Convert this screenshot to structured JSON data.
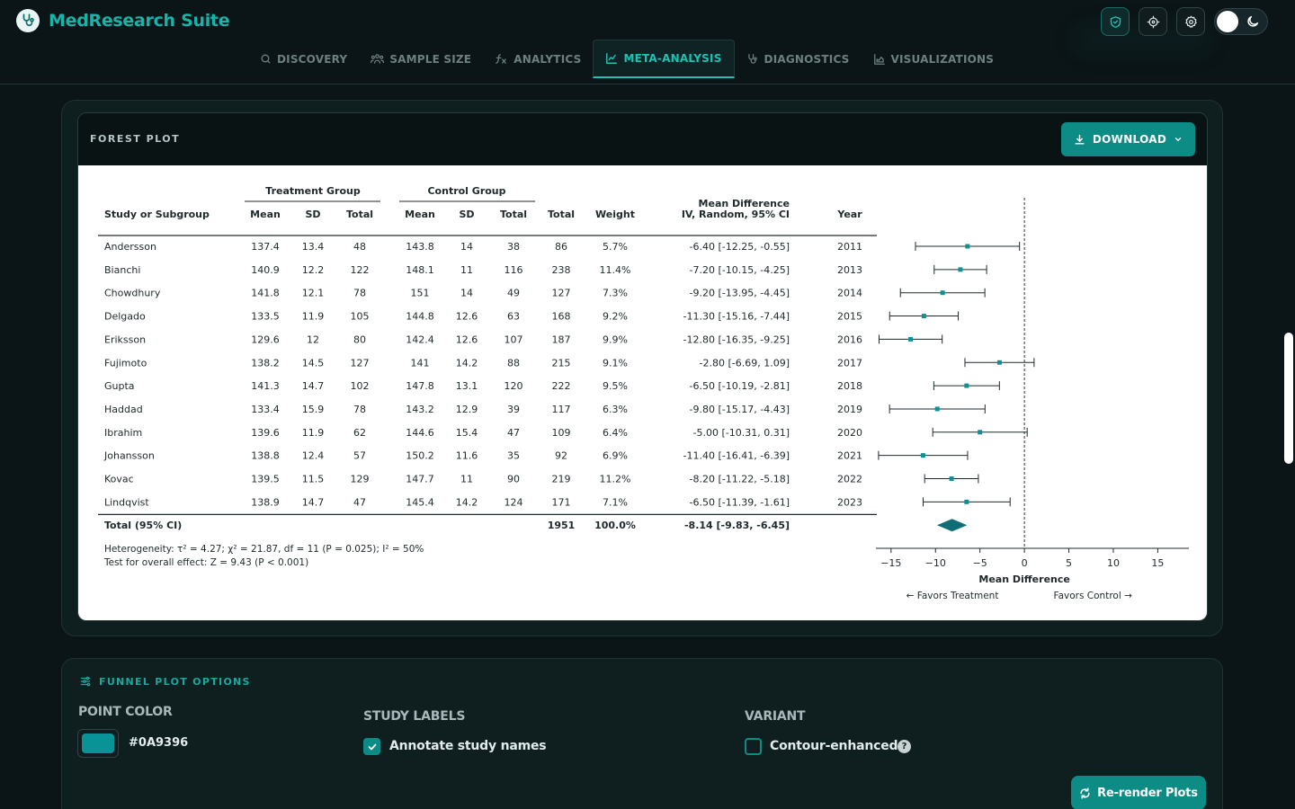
{
  "app": {
    "title": "MedResearch Suite"
  },
  "nav": {
    "tabs": [
      {
        "label": "DISCOVERY",
        "icon": "search-icon",
        "active": false
      },
      {
        "label": "SAMPLE SIZE",
        "icon": "users-icon",
        "active": false
      },
      {
        "label": "ANALYTICS",
        "icon": "function-icon",
        "active": false
      },
      {
        "label": "META-ANALYSIS",
        "icon": "chart-line-icon",
        "active": true
      },
      {
        "label": "DIAGNOSTICS",
        "icon": "stethoscope-icon",
        "active": false
      },
      {
        "label": "VISUALIZATIONS",
        "icon": "chart-area-icon",
        "active": false
      }
    ]
  },
  "header_actions": [
    "shield-icon",
    "crosshair-icon",
    "gear-icon",
    "theme-toggle"
  ],
  "forest": {
    "title": "FOREST PLOT",
    "download_label": "DOWNLOAD",
    "groups": {
      "treatment": "Treatment Group",
      "control": "Control Group"
    },
    "columns": {
      "study": "Study or Subgroup",
      "mean": "Mean",
      "sd": "SD",
      "total": "Total",
      "overall_total": "Total",
      "weight": "Weight",
      "md_line1": "Mean Difference",
      "md_line2": "IV, Random, 95% CI",
      "year": "Year"
    },
    "studies": [
      {
        "name": "Andersson",
        "t_mean": "137.4",
        "t_sd": "13.4",
        "t_total": "48",
        "c_mean": "143.8",
        "c_sd": "14",
        "c_total": "38",
        "total": "86",
        "weight": "5.7%",
        "ci_text": "-6.40 [-12.25, -0.55]",
        "year": "2011",
        "md": -6.4,
        "lo": -12.25,
        "hi": -0.55
      },
      {
        "name": "Bianchi",
        "t_mean": "140.9",
        "t_sd": "12.2",
        "t_total": "122",
        "c_mean": "148.1",
        "c_sd": "11",
        "c_total": "116",
        "total": "238",
        "weight": "11.4%",
        "ci_text": "-7.20 [-10.15, -4.25]",
        "year": "2013",
        "md": -7.2,
        "lo": -10.15,
        "hi": -4.25
      },
      {
        "name": "Chowdhury",
        "t_mean": "141.8",
        "t_sd": "12.1",
        "t_total": "78",
        "c_mean": "151",
        "c_sd": "14",
        "c_total": "49",
        "total": "127",
        "weight": "7.3%",
        "ci_text": "-9.20 [-13.95, -4.45]",
        "year": "2014",
        "md": -9.2,
        "lo": -13.95,
        "hi": -4.45
      },
      {
        "name": "Delgado",
        "t_mean": "133.5",
        "t_sd": "11.9",
        "t_total": "105",
        "c_mean": "144.8",
        "c_sd": "12.6",
        "c_total": "63",
        "total": "168",
        "weight": "9.2%",
        "ci_text": "-11.30 [-15.16, -7.44]",
        "year": "2015",
        "md": -11.3,
        "lo": -15.16,
        "hi": -7.44
      },
      {
        "name": "Eriksson",
        "t_mean": "129.6",
        "t_sd": "12",
        "t_total": "80",
        "c_mean": "142.4",
        "c_sd": "12.6",
        "c_total": "107",
        "total": "187",
        "weight": "9.9%",
        "ci_text": "-12.80 [-16.35, -9.25]",
        "year": "2016",
        "md": -12.8,
        "lo": -16.35,
        "hi": -9.25
      },
      {
        "name": "Fujimoto",
        "t_mean": "138.2",
        "t_sd": "14.5",
        "t_total": "127",
        "c_mean": "141",
        "c_sd": "14.2",
        "c_total": "88",
        "total": "215",
        "weight": "9.1%",
        "ci_text": "-2.80 [-6.69, 1.09]",
        "year": "2017",
        "md": -2.8,
        "lo": -6.69,
        "hi": 1.09
      },
      {
        "name": "Gupta",
        "t_mean": "141.3",
        "t_sd": "14.7",
        "t_total": "102",
        "c_mean": "147.8",
        "c_sd": "13.1",
        "c_total": "120",
        "total": "222",
        "weight": "9.5%",
        "ci_text": "-6.50 [-10.19, -2.81]",
        "year": "2018",
        "md": -6.5,
        "lo": -10.19,
        "hi": -2.81
      },
      {
        "name": "Haddad",
        "t_mean": "133.4",
        "t_sd": "15.9",
        "t_total": "78",
        "c_mean": "143.2",
        "c_sd": "12.9",
        "c_total": "39",
        "total": "117",
        "weight": "6.3%",
        "ci_text": "-9.80 [-15.17, -4.43]",
        "year": "2019",
        "md": -9.8,
        "lo": -15.17,
        "hi": -4.43
      },
      {
        "name": "Ibrahim",
        "t_mean": "139.6",
        "t_sd": "11.9",
        "t_total": "62",
        "c_mean": "144.6",
        "c_sd": "15.4",
        "c_total": "47",
        "total": "109",
        "weight": "6.4%",
        "ci_text": "-5.00 [-10.31, 0.31]",
        "year": "2020",
        "md": -5.0,
        "lo": -10.31,
        "hi": 0.31
      },
      {
        "name": "Johansson",
        "t_mean": "138.8",
        "t_sd": "12.4",
        "t_total": "57",
        "c_mean": "150.2",
        "c_sd": "11.6",
        "c_total": "35",
        "total": "92",
        "weight": "6.9%",
        "ci_text": "-11.40 [-16.41, -6.39]",
        "year": "2021",
        "md": -11.4,
        "lo": -16.41,
        "hi": -6.39
      },
      {
        "name": "Kovac",
        "t_mean": "139.5",
        "t_sd": "11.5",
        "t_total": "129",
        "c_mean": "147.7",
        "c_sd": "11",
        "c_total": "90",
        "total": "219",
        "weight": "11.2%",
        "ci_text": "-8.20 [-11.22, -5.18]",
        "year": "2022",
        "md": -8.2,
        "lo": -11.22,
        "hi": -5.18
      },
      {
        "name": "Lindqvist",
        "t_mean": "138.9",
        "t_sd": "14.7",
        "t_total": "47",
        "c_mean": "145.4",
        "c_sd": "14.2",
        "c_total": "124",
        "total": "171",
        "weight": "7.1%",
        "ci_text": "-6.50 [-11.39, -1.61]",
        "year": "2023",
        "md": -6.5,
        "lo": -11.39,
        "hi": -1.61
      }
    ],
    "overall": {
      "label": "Total (95% CI)",
      "total": "1951",
      "weight": "100.0%",
      "ci_text": "-8.14 [-9.83, -6.45]",
      "md": -8.14,
      "lo": -9.83,
      "hi": -6.45
    },
    "heterogeneity": "Heterogeneity: τ² = 4.27; χ² = 21.87, df = 11 (P = 0.025); I² = 50%",
    "overall_effect": "Test for overall effect: Z = 9.43 (P < 0.001)",
    "axis": {
      "ticks": [
        -15,
        -10,
        -5,
        0,
        5,
        10,
        15
      ],
      "tick_labels": [
        "−15",
        "−10",
        "−5",
        "0",
        "5",
        "10",
        "15"
      ],
      "domain": [
        -16.5,
        18.5
      ],
      "xlabel": "Mean Difference",
      "favors_left": "← Favors Treatment",
      "favors_right": "Favors Control →"
    },
    "point_color": "#0A9396"
  },
  "chart_data": {
    "type": "scatter",
    "title": "FOREST PLOT",
    "xlabel": "Mean Difference",
    "ylabel": "",
    "xlim": [
      -16.5,
      18.5
    ],
    "categories": [
      "Andersson",
      "Bianchi",
      "Chowdhury",
      "Delgado",
      "Eriksson",
      "Fujimoto",
      "Gupta",
      "Haddad",
      "Ibrahim",
      "Johansson",
      "Kovac",
      "Lindqvist",
      "Total (95% CI)"
    ],
    "values": [
      -6.4,
      -7.2,
      -9.2,
      -11.3,
      -12.8,
      -2.8,
      -6.5,
      -9.8,
      -5.0,
      -11.4,
      -8.2,
      -6.5,
      -8.14
    ],
    "ci_lower": [
      -12.25,
      -10.15,
      -13.95,
      -15.16,
      -16.35,
      -6.69,
      -10.19,
      -15.17,
      -10.31,
      -16.41,
      -11.22,
      -11.39,
      -9.83
    ],
    "ci_upper": [
      -0.55,
      -4.25,
      -4.45,
      -7.44,
      -9.25,
      1.09,
      -2.81,
      -4.43,
      0.31,
      -6.39,
      -5.18,
      -1.61,
      -6.45
    ],
    "reference_line": 0,
    "grid": false
  },
  "funnel": {
    "title": "FUNNEL PLOT OPTIONS",
    "point_color_label": "POINT COLOR",
    "point_color_value": "#0A9396",
    "study_labels_label": "STUDY LABELS",
    "annotate_label": "Annotate study names",
    "annotate_checked": true,
    "variant_label": "VARIANT",
    "contour_label": "Contour-enhanced",
    "contour_checked": false,
    "help_glyph": "?",
    "rerender_label": "Re-render Plots"
  }
}
